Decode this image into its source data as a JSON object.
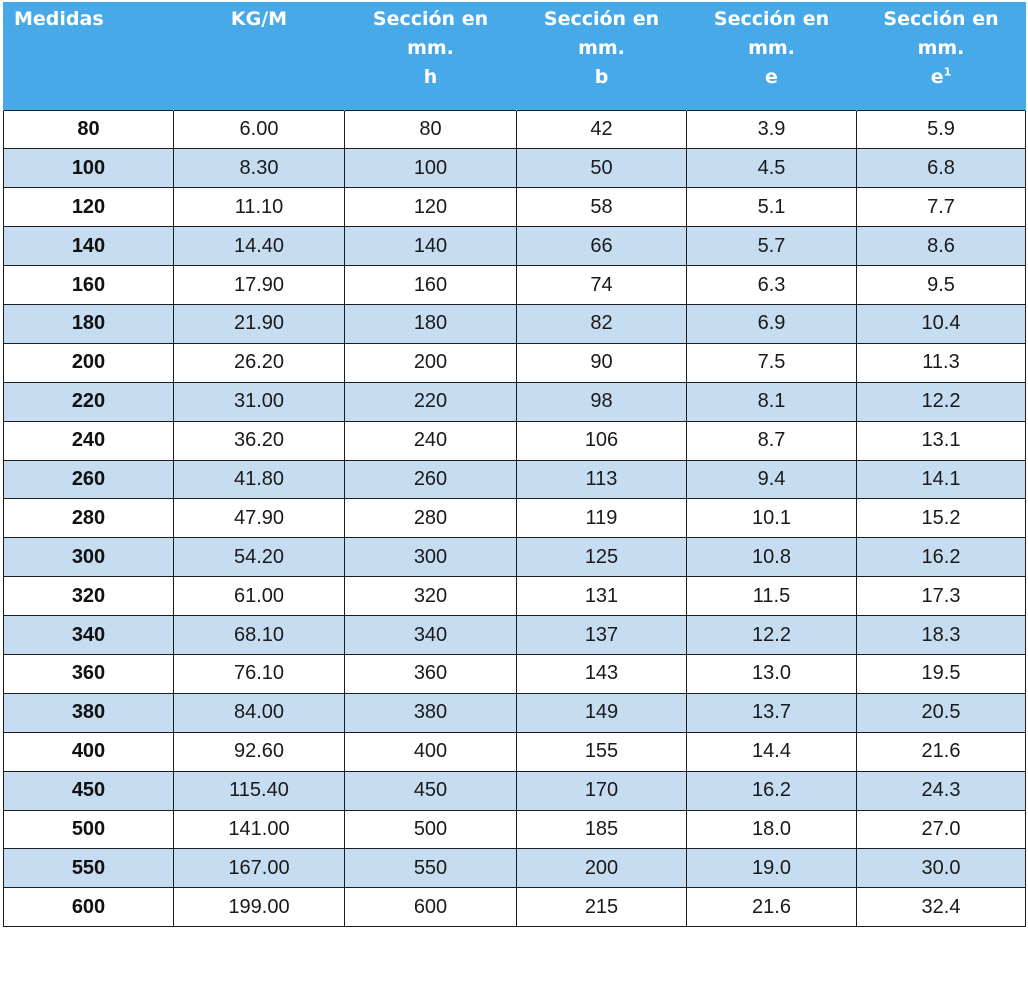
{
  "table": {
    "headers": [
      {
        "lines": [
          "Medidas"
        ],
        "sup": ""
      },
      {
        "lines": [
          "KG/M"
        ],
        "sup": ""
      },
      {
        "lines": [
          "Sección en",
          "mm.",
          "h"
        ],
        "sup": ""
      },
      {
        "lines": [
          "Sección en",
          "mm.",
          "b"
        ],
        "sup": ""
      },
      {
        "lines": [
          "Sección en",
          "mm.",
          "e"
        ],
        "sup": ""
      },
      {
        "lines": [
          "Sección en",
          "mm.",
          "e"
        ],
        "sup": "1"
      }
    ],
    "rows": [
      [
        "80",
        "6.00",
        "80",
        "42",
        "3.9",
        "5.9"
      ],
      [
        "100",
        "8.30",
        "100",
        "50",
        "4.5",
        "6.8"
      ],
      [
        "120",
        "11.10",
        "120",
        "58",
        "5.1",
        "7.7"
      ],
      [
        "140",
        "14.40",
        "140",
        "66",
        "5.7",
        "8.6"
      ],
      [
        "160",
        "17.90",
        "160",
        "74",
        "6.3",
        "9.5"
      ],
      [
        "180",
        "21.90",
        "180",
        "82",
        "6.9",
        "10.4"
      ],
      [
        "200",
        "26.20",
        "200",
        "90",
        "7.5",
        "11.3"
      ],
      [
        "220",
        "31.00",
        "220",
        "98",
        "8.1",
        "12.2"
      ],
      [
        "240",
        "36.20",
        "240",
        "106",
        "8.7",
        "13.1"
      ],
      [
        "260",
        "41.80",
        "260",
        "113",
        "9.4",
        "14.1"
      ],
      [
        "280",
        "47.90",
        "280",
        "119",
        "10.1",
        "15.2"
      ],
      [
        "300",
        "54.20",
        "300",
        "125",
        "10.8",
        "16.2"
      ],
      [
        "320",
        "61.00",
        "320",
        "131",
        "11.5",
        "17.3"
      ],
      [
        "340",
        "68.10",
        "340",
        "137",
        "12.2",
        "18.3"
      ],
      [
        "360",
        "76.10",
        "360",
        "143",
        "13.0",
        "19.5"
      ],
      [
        "380",
        "84.00",
        "380",
        "149",
        "13.7",
        "20.5"
      ],
      [
        "400",
        "92.60",
        "400",
        "155",
        "14.4",
        "21.6"
      ],
      [
        "450",
        "115.40",
        "450",
        "170",
        "16.2",
        "24.3"
      ],
      [
        "500",
        "141.00",
        "500",
        "185",
        "18.0",
        "27.0"
      ],
      [
        "550",
        "167.00",
        "550",
        "200",
        "19.0",
        "30.0"
      ],
      [
        "600",
        "199.00",
        "600",
        "215",
        "21.6",
        "32.4"
      ]
    ]
  },
  "colors": {
    "header_bg": "#48a9e8",
    "header_text": "#ffffff",
    "stripe": "#c6dcf0",
    "border": "#1d1d1d"
  }
}
